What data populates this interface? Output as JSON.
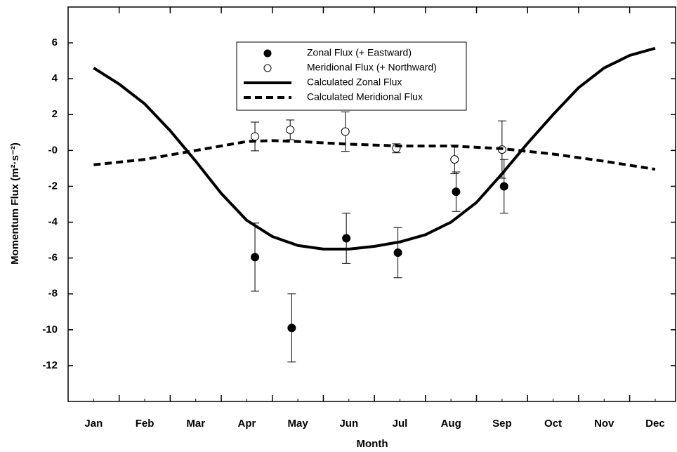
{
  "chart_data": {
    "type": "scatter",
    "x_label": "Month",
    "y_label": "Momentum Flux (m²·s⁻²)",
    "xlim": [
      0.5,
      12.4
    ],
    "ylim": [
      -14,
      8
    ],
    "xticks": [
      {
        "value": 1,
        "label": "Jan"
      },
      {
        "value": 2,
        "label": "Feb"
      },
      {
        "value": 3,
        "label": "Mar"
      },
      {
        "value": 4,
        "label": "Apr"
      },
      {
        "value": 5,
        "label": "May"
      },
      {
        "value": 6,
        "label": "Jun"
      },
      {
        "value": 7,
        "label": "Jul"
      },
      {
        "value": 8,
        "label": "Aug"
      },
      {
        "value": 9,
        "label": "Sep"
      },
      {
        "value": 10,
        "label": "Oct"
      },
      {
        "value": 11,
        "label": "Nov"
      },
      {
        "value": 12,
        "label": "Dec"
      }
    ],
    "yticks": [
      6,
      4,
      2,
      {
        "value": 0,
        "label": "-0"
      },
      -2,
      -4,
      -6,
      -8,
      -10,
      -12
    ],
    "series": [
      {
        "name": "Zonal Flux (+ Eastward)",
        "color": "#000000",
        "kind": "filled-points",
        "x": [
          4.16,
          4.88,
          5.95,
          6.96,
          8.1,
          9.04
        ],
        "values": [
          -5.95,
          -9.9,
          -4.9,
          -5.7,
          -2.3,
          -2.0
        ],
        "errors": [
          1.9,
          1.9,
          1.4,
          1.4,
          1.1,
          1.5
        ]
      },
      {
        "name": "Meridional Flux (+ Northward)",
        "color": "#000000",
        "kind": "open-points",
        "x": [
          4.16,
          4.85,
          5.93,
          6.93,
          8.07,
          9.0
        ],
        "values": [
          0.78,
          1.15,
          1.05,
          0.12,
          -0.5,
          0.05
        ],
        "errors": [
          0.8,
          0.55,
          1.1,
          0.25,
          0.8,
          1.6
        ]
      },
      {
        "name": "Calculated Zonal Flux",
        "color": "#000000",
        "kind": "solid-line",
        "x": [
          1,
          1.5,
          2,
          2.5,
          3,
          3.5,
          4,
          4.5,
          5,
          5.5,
          6,
          6.5,
          7,
          7.5,
          8,
          8.5,
          9,
          9.5,
          10,
          10.5,
          11,
          11.5,
          12
        ],
        "values": [
          4.6,
          3.7,
          2.6,
          1.1,
          -0.6,
          -2.4,
          -3.9,
          -4.8,
          -5.3,
          -5.5,
          -5.5,
          -5.35,
          -5.1,
          -4.7,
          -4.0,
          -2.9,
          -1.3,
          0.4,
          2.0,
          3.5,
          4.6,
          5.3,
          5.7
        ]
      },
      {
        "name": "Calculated Meridional Flux",
        "color": "#000000",
        "kind": "dashed-line",
        "x": [
          1,
          2,
          3,
          4,
          4.5,
          5,
          6,
          7,
          8,
          9,
          10,
          11,
          12
        ],
        "values": [
          -0.8,
          -0.5,
          0.0,
          0.5,
          0.55,
          0.5,
          0.35,
          0.25,
          0.25,
          0.1,
          -0.2,
          -0.6,
          -1.05
        ]
      }
    ]
  }
}
